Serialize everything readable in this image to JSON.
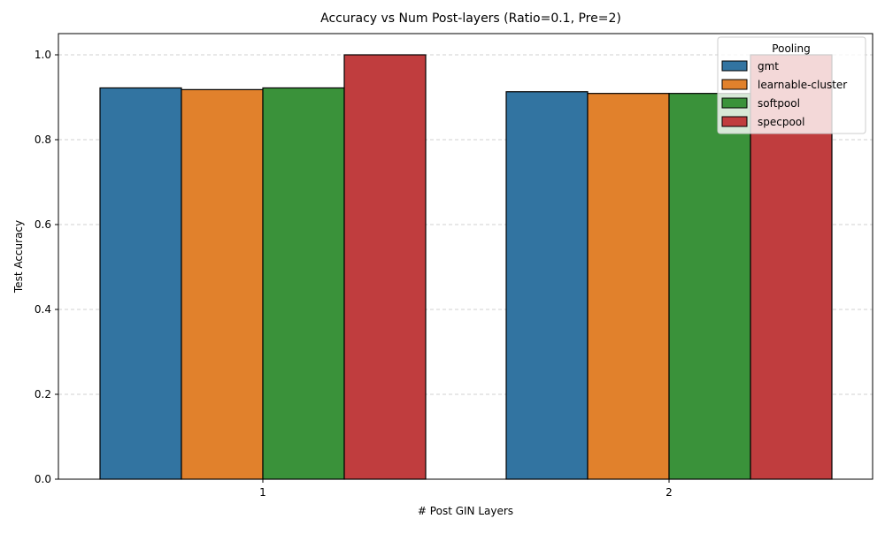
{
  "chart_data": {
    "type": "bar",
    "title": "Accuracy vs Num Post-layers (Ratio=0.1, Pre=2)",
    "xlabel": "# Post GIN Layers",
    "ylabel": "Test Accuracy",
    "categories": [
      "1",
      "2"
    ],
    "ylim": [
      0,
      1.05
    ],
    "yticks": [
      0.0,
      0.2,
      0.4,
      0.6,
      0.8,
      1.0
    ],
    "ytick_labels": [
      "0.0",
      "0.2",
      "0.4",
      "0.6",
      "0.8",
      "1.0"
    ],
    "grid": "y-dashed",
    "legend": {
      "title": "Pooling",
      "placement": "top-right"
    },
    "series": [
      {
        "name": "gmt",
        "color": "#3274a1",
        "values": [
          0.922,
          0.913
        ]
      },
      {
        "name": "learnable-cluster",
        "color": "#e1812c",
        "values": [
          0.918,
          0.909
        ]
      },
      {
        "name": "softpool",
        "color": "#3a923a",
        "values": [
          0.922,
          0.909
        ]
      },
      {
        "name": "specpool",
        "color": "#c03d3e",
        "values": [
          1.0,
          1.0
        ]
      }
    ]
  }
}
